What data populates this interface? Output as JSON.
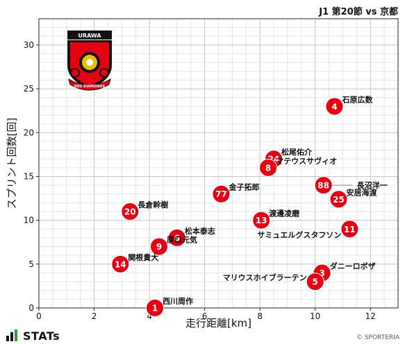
{
  "header": {
    "title": "J1 第20節 vs 京都"
  },
  "footer": {
    "brand": "STATs",
    "copyright": "© SPORTERIA"
  },
  "crest": {
    "top_text": "URAWA",
    "bottom_text": "RED DIAMONDS",
    "color_red": "#e60012",
    "color_black": "#111111",
    "color_gold": "#e8c000"
  },
  "chart_data": {
    "type": "scatter",
    "xlabel": "走行距離[km]",
    "ylabel": "スプリント回数[回]",
    "xlim": [
      0,
      13
    ],
    "ylim": [
      0,
      33
    ],
    "xticks": [
      0,
      2,
      4,
      6,
      8,
      10,
      12
    ],
    "yticks": [
      0,
      5,
      10,
      15,
      20,
      25,
      30
    ],
    "grid": true,
    "marker_color": "#e60012",
    "points": [
      {
        "number": "4",
        "name": "石原広数",
        "x": 10.7,
        "y": 23
      },
      {
        "number": "24",
        "name": "松尾佑介",
        "x": 8.5,
        "y": 17
      },
      {
        "number": "8",
        "name": "マテウスサヴィオ",
        "x": 8.3,
        "y": 16
      },
      {
        "number": "88",
        "name": "長沼洋一",
        "x": 10.3,
        "y": 14
      },
      {
        "number": "77",
        "name": "金子拓郎",
        "x": 6.6,
        "y": 13
      },
      {
        "number": "25",
        "name": "安居海渡",
        "x": 10.85,
        "y": 12.4
      },
      {
        "number": "20",
        "name": "長倉幹樹",
        "x": 3.3,
        "y": 11
      },
      {
        "number": "13",
        "name": "渡邊凌磨",
        "x": 8.05,
        "y": 10
      },
      {
        "number": "11",
        "name": "サミュエルグスタフソン",
        "x": 11.25,
        "y": 9
      },
      {
        "number": "6",
        "name": "松本泰志",
        "x": 5.0,
        "y": 8
      },
      {
        "number": "9",
        "name": "原口元気",
        "x": 4.35,
        "y": 7
      },
      {
        "number": "14",
        "name": "関根貴大",
        "x": 2.95,
        "y": 5
      },
      {
        "number": "3",
        "name": "ダニーロボザ",
        "x": 10.25,
        "y": 4
      },
      {
        "number": "5",
        "name": "マリウスホイブラーテン",
        "x": 10.0,
        "y": 3
      },
      {
        "number": "1",
        "name": "西川周作",
        "x": 4.2,
        "y": 0
      }
    ]
  }
}
